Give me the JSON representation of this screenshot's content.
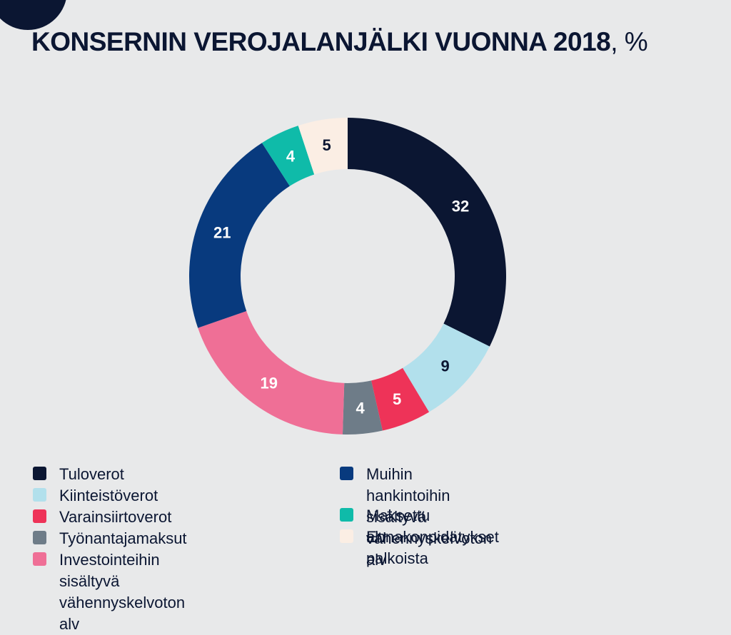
{
  "title": {
    "main": "KONSERNIN VEROJALANJÄLKI VUONNA 2018",
    "unit": ", %"
  },
  "chart_data": {
    "type": "pie",
    "donut": true,
    "title": "KONSERNIN VEROJALANJÄLKI VUONNA 2018, %",
    "categories": [
      "Tuloverot",
      "Kiinteistöverot",
      "Varainsiirtoverot",
      "Työnantajamaksut",
      "Investointeihin sisältyvä vähennyskelvoton alv",
      "Muihin hankintoihin sisältyvä vähennyskelvoton alv",
      "Maksettu alv",
      "Ennakonpidätykset palkoista"
    ],
    "values": [
      32,
      9,
      5,
      4,
      19,
      21,
      4,
      5
    ],
    "colors": [
      "#0b1632",
      "#b2e0ec",
      "#ee3358",
      "#6e7c88",
      "#ef6f96",
      "#083a7e",
      "#0fbba9",
      "#fbeee4"
    ],
    "label_colors": [
      "#ffffff",
      "#0b1632",
      "#ffffff",
      "#ffffff",
      "#ffffff",
      "#ffffff",
      "#ffffff",
      "#0b1632"
    ],
    "unit": "%",
    "legend_position": "bottom"
  },
  "legend": [
    {
      "label": "Tuloverot",
      "color": "#0b1632"
    },
    {
      "label": "Kiinteistöverot",
      "color": "#b2e0ec"
    },
    {
      "label": "Varainsiirtoverot",
      "color": "#ee3358"
    },
    {
      "label": "Työnantajamaksut",
      "color": "#6e7c88"
    },
    {
      "label": "Investointeihin sisältyvä\nvähennyskelvoton alv",
      "color": "#ef6f96"
    },
    {
      "label": "Muihin hankintoihin sisältyvä\nvähennyskelvoton alv",
      "color": "#083a7e"
    },
    {
      "label": "Maksettu alv",
      "color": "#0fbba9"
    },
    {
      "label": "Ennakonpidätykset palkoista",
      "color": "#fbeee4"
    }
  ]
}
